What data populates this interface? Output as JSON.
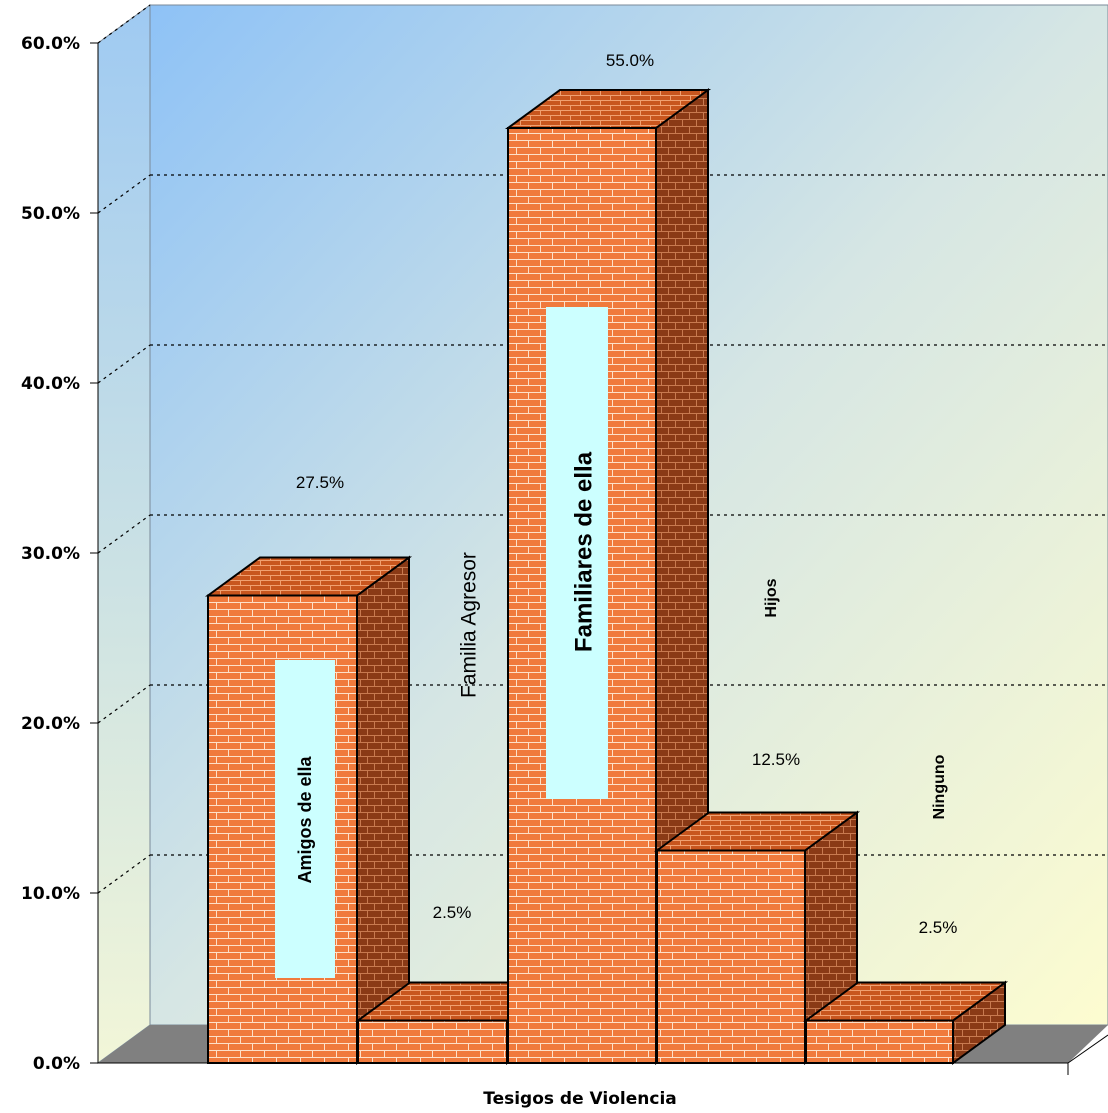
{
  "chart_data": {
    "type": "bar",
    "title": "",
    "xlabel": "Tesigos de Violencia",
    "ylabel": "",
    "categories": [
      "Amigos de ella",
      "Familia Agresor",
      "Familiares de ella",
      "Hijos",
      "Ninguno"
    ],
    "values": [
      27.5,
      2.5,
      55.0,
      12.5,
      2.5
    ],
    "value_labels": [
      "27.5%",
      "2.5%",
      "55.0%",
      "12.5%",
      "2.5%"
    ],
    "yticks": [
      "0.0%",
      "10.0%",
      "20.0%",
      "30.0%",
      "40.0%",
      "50.0%",
      "60.0%"
    ],
    "ylim": [
      0,
      60
    ],
    "grid": true,
    "legend": "none",
    "colors": {
      "bar_front": "#f07a3c",
      "bar_side": "#8a3a16",
      "bar_top": "#c8561e",
      "brick_mortar": "#fde0c8",
      "label_box": "#ccffff",
      "floor": "#808080",
      "wall_top_left": "#8ec2f6",
      "wall_bottom_right": "#fdfcd0"
    }
  }
}
